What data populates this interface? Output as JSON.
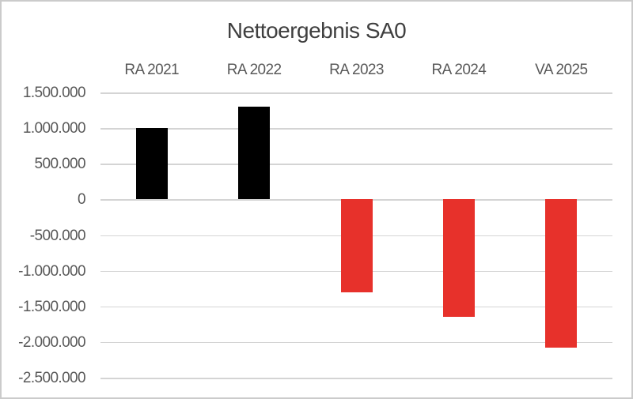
{
  "chart_data": {
    "type": "bar",
    "title": "Nettoergebnis SA0",
    "categories": [
      "RA 2021",
      "RA 2022",
      "RA 2023",
      "RA 2024",
      "VA 2025"
    ],
    "values": [
      1000000,
      1300000,
      -1300000,
      -1650000,
      -2080000
    ],
    "bar_colors": [
      "#000000",
      "#000000",
      "#e7312b",
      "#e7312b",
      "#e7312b"
    ],
    "ylim": [
      -2500000,
      1500000
    ],
    "ytick_step": 500000,
    "ytick_labels": [
      "1.500.000",
      "1.000.000",
      "500.000",
      "0",
      "-500.000",
      "-1.000.000",
      "-1.500.000",
      "-2.000.000",
      "-2.500.000"
    ],
    "xlabel": "",
    "ylabel": "",
    "grid": true,
    "legend_position": "none",
    "category_label_position": "top",
    "number_format": "de-DE",
    "colors": {
      "title_text": "#3f3f3f",
      "axis_text": "#595959",
      "gridline": "#d4d4d4",
      "positive_bar": "#000000",
      "negative_bar": "#e7312b",
      "background": "#ffffff",
      "frame_border": "#cbcbcb"
    }
  }
}
